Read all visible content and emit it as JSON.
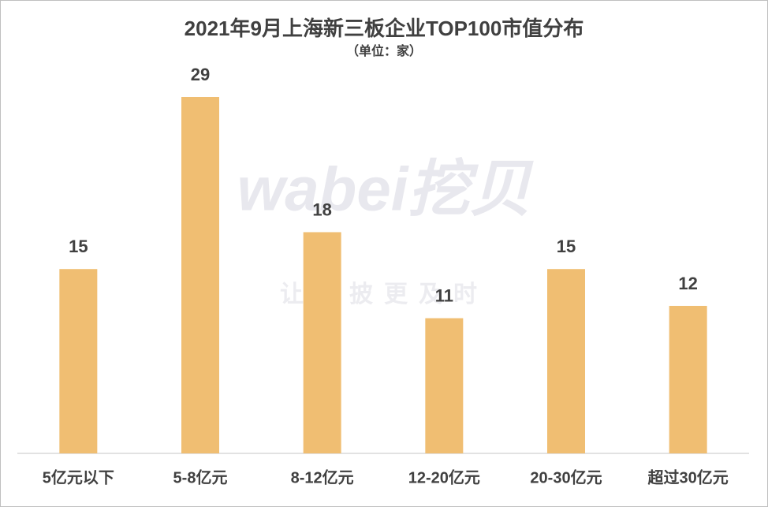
{
  "chart_data": {
    "type": "bar",
    "title": "2021年9月上海新三板企业TOP100市值分布",
    "subtitle": "（单位：家）",
    "categories": [
      "5亿元以下",
      "5-8亿元",
      "8-12亿元",
      "12-20亿元",
      "20-30亿元",
      "超过30亿元"
    ],
    "values": [
      15,
      29,
      18,
      11,
      15,
      12
    ],
    "color": "#f0be72",
    "watermark": {
      "logo": "wabei挖贝",
      "slogan": "让信披更及时"
    }
  }
}
